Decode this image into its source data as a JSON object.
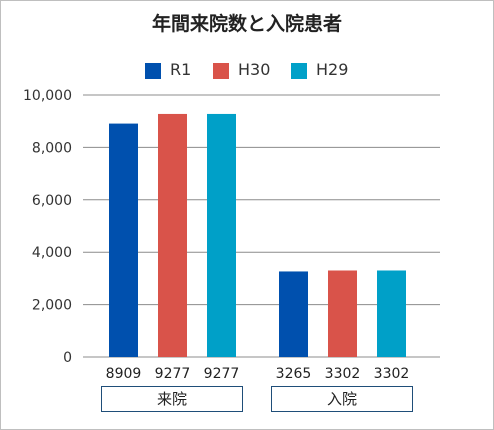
{
  "chart_data": {
    "type": "bar",
    "title": "年間来院数と入院患者",
    "categories": [
      "来院",
      "入院"
    ],
    "series": [
      {
        "name": "R1",
        "values": [
          8909,
          3265
        ],
        "color": "#0050AE"
      },
      {
        "name": "H30",
        "values": [
          9277,
          3302
        ],
        "color": "#D9534A"
      },
      {
        "name": "H29",
        "values": [
          9277,
          3302
        ],
        "color": "#00A0C8"
      }
    ],
    "data_labels": [
      [
        "8909",
        "9277",
        "9277"
      ],
      [
        "3265",
        "3302",
        "3302"
      ]
    ],
    "ylim": [
      0,
      10000
    ],
    "yticks": [
      "0",
      "2,000",
      "4,000",
      "6,000",
      "8,000",
      "10,000"
    ],
    "ytick_values": [
      0,
      2000,
      4000,
      6000,
      8000,
      10000
    ],
    "grid": true,
    "legend_position": "top-center",
    "xlabel": "",
    "ylabel": ""
  }
}
